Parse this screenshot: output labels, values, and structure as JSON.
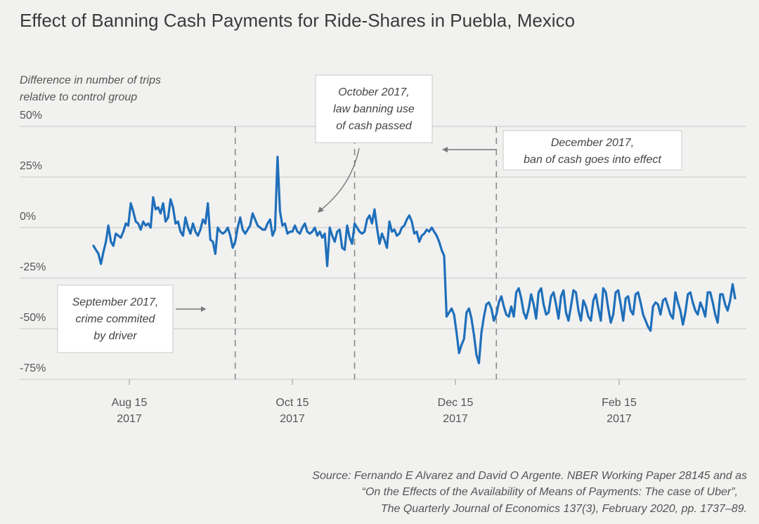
{
  "chart_data": {
    "type": "line",
    "title": "Effect of Banning Cash Payments for Ride-Shares in Puebla, Mexico",
    "ylabel_lines": [
      "Difference in number of trips",
      "relative to control group"
    ],
    "y_ticks": [
      "50%",
      "25%",
      "0%",
      "-25%",
      "-50%",
      "-75%"
    ],
    "x_ticks": [
      {
        "label1": "Aug 15",
        "label2": "2017"
      },
      {
        "label1": "Oct 15",
        "label2": "2017"
      },
      {
        "label1": "Dec 15",
        "label2": "2017"
      },
      {
        "label1": "Feb 15",
        "label2": "2017"
      }
    ],
    "ylim": [
      -75,
      50
    ],
    "grid": true,
    "color": "#1f6fba",
    "series": [
      {
        "values": [
          -9,
          -11,
          -13,
          -18,
          -12,
          -7,
          1,
          -7,
          -9,
          -3,
          -4,
          -5,
          -2,
          2,
          1,
          12,
          8,
          3,
          2,
          -1,
          3,
          1,
          2,
          0,
          15,
          9,
          10,
          7,
          12,
          3,
          5,
          14,
          10,
          2,
          3,
          -2,
          -4,
          5,
          0,
          -3,
          2,
          -2,
          -4,
          -1,
          4,
          2,
          12,
          -6,
          -7,
          -13,
          0,
          -2,
          -3,
          -2,
          0,
          -4,
          -10,
          -7,
          0,
          5,
          -1,
          -3,
          -1,
          1,
          7,
          4,
          1,
          0,
          -1,
          -1,
          2,
          4,
          -4,
          -1,
          35,
          8,
          1,
          2,
          -3,
          -2,
          -2,
          1,
          -2,
          -3,
          0,
          2,
          -2,
          -3,
          -2,
          0,
          -4,
          -2,
          -5,
          -3,
          -19,
          0,
          -4,
          -7,
          -2,
          -1,
          -10,
          -11,
          1,
          -5,
          -8,
          2,
          0,
          -2,
          -3,
          -2,
          4,
          6,
          2,
          9,
          0,
          -8,
          -3,
          -6,
          -10,
          3,
          -2,
          -1,
          -4,
          -3,
          0,
          1,
          4,
          6,
          3,
          -3,
          -2,
          -7,
          -4,
          -3,
          -1,
          -2,
          0,
          -2,
          -4,
          -7,
          -11,
          -14,
          -44,
          -42,
          -40,
          -43,
          -52,
          -62,
          -58,
          -55,
          -42,
          -40,
          -45,
          -53,
          -63,
          -67,
          -52,
          -44,
          -38,
          -37,
          -40,
          -46,
          -43,
          -37,
          -34,
          -39,
          -43,
          -44,
          -39,
          -44,
          -32,
          -30,
          -35,
          -42,
          -45,
          -40,
          -33,
          -38,
          -45,
          -32,
          -30,
          -38,
          -43,
          -42,
          -34,
          -32,
          -38,
          -45,
          -34,
          -31,
          -42,
          -46,
          -39,
          -31,
          -32,
          -41,
          -46,
          -36,
          -39,
          -44,
          -46,
          -36,
          -33,
          -40,
          -46,
          -30,
          -32,
          -40,
          -47,
          -43,
          -32,
          -31,
          -38,
          -46,
          -35,
          -34,
          -41,
          -43,
          -33,
          -32,
          -37,
          -43,
          -46,
          -49,
          -51,
          -39,
          -37,
          -38,
          -43,
          -36,
          -35,
          -39,
          -43,
          -45,
          -32,
          -37,
          -41,
          -48,
          -42,
          -33,
          -32,
          -37,
          -41,
          -43,
          -37,
          -40,
          -44,
          -32,
          -32,
          -37,
          -43,
          -47,
          -33,
          -33,
          -38,
          -41,
          -36,
          -28,
          -35
        ]
      }
    ],
    "vlines": [
      {
        "value": 57
      },
      {
        "value": 105
      },
      {
        "value": 162
      }
    ],
    "annotations": [
      {
        "lines": [
          "September 2017,",
          "crime commited",
          "by driver"
        ]
      },
      {
        "lines": [
          "October 2017,",
          "law banning use",
          "of cash passed"
        ]
      },
      {
        "lines": [
          "December 2017,",
          "ban of cash goes into effect"
        ]
      }
    ]
  },
  "source_lines": [
    "Source: Fernando E Alvarez and David O Argente. NBER Working Paper 28145 and as",
    "“On the Effects of the Availability of Means of Payments: The case of Uber”,",
    "The Quarterly Journal of Economics 137(3), February 2020, pp. 1737–89."
  ]
}
